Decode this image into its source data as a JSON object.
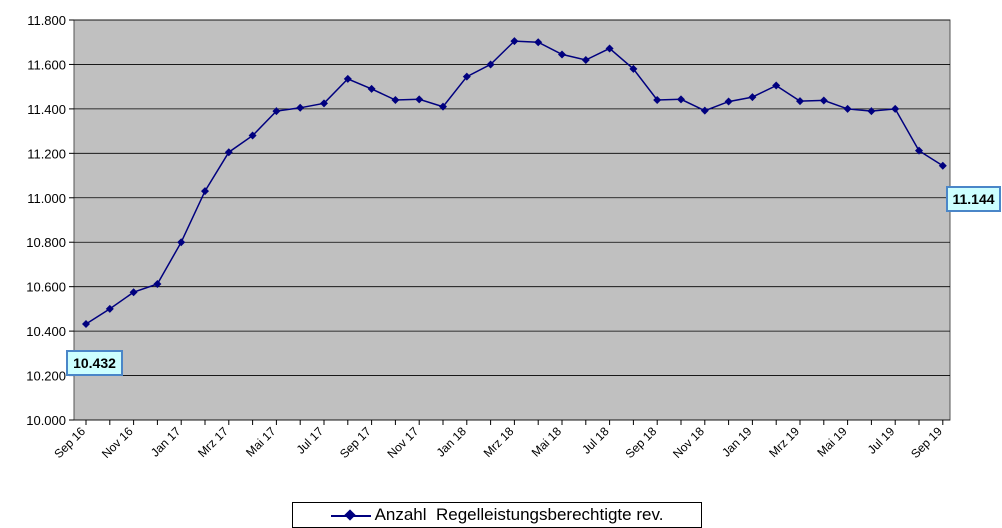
{
  "chart_data": {
    "type": "line",
    "title": "",
    "xlabel": "",
    "ylabel": "",
    "ylim": [
      10000,
      11800
    ],
    "yticks": [
      "10.000",
      "10.200",
      "10.400",
      "10.600",
      "10.800",
      "11.000",
      "11.200",
      "11.400",
      "11.600",
      "11.800"
    ],
    "grid": "horizontal",
    "legend_position": "bottom",
    "colors": {
      "plot_bg": "#c0c0c0",
      "line": "#00007f",
      "label_bg": "#ccffff",
      "label_border": "#4a86c8"
    },
    "x_tick_labels": [
      "Sep 16",
      "Nov 16",
      "Jan 17",
      "Mrz 17",
      "Mai 17",
      "Jul 17",
      "Sep 17",
      "Nov 17",
      "Jan 18",
      "Mrz 18",
      "Mai 18",
      "Jul 18",
      "Sep 18",
      "Nov 18",
      "Jan 19",
      "Mrz 19",
      "Mai 19",
      "Jul 19",
      "Sep 19"
    ],
    "x": [
      "Sep 16",
      "Okt 16",
      "Nov 16",
      "Dez 16",
      "Jan 17",
      "Feb 17",
      "Mrz 17",
      "Apr 17",
      "Mai 17",
      "Jun 17",
      "Jul 17",
      "Aug 17",
      "Sep 17",
      "Okt 17",
      "Nov 17",
      "Dez 17",
      "Jan 18",
      "Feb 18",
      "Mrz 18",
      "Apr 18",
      "Mai 18",
      "Jun 18",
      "Jul 18",
      "Aug 18",
      "Sep 18",
      "Okt 18",
      "Nov 18",
      "Dez 18",
      "Jan 19",
      "Feb 19",
      "Mrz 19",
      "Apr 19",
      "Mai 19",
      "Jun 19",
      "Jul 19",
      "Aug 19",
      "Sep 19"
    ],
    "series": [
      {
        "name": "Anzahl  Regelleistungsberechtigte rev.",
        "values": [
          10432,
          10500,
          10575,
          10612,
          10800,
          11030,
          11205,
          11280,
          11390,
          11405,
          11425,
          11535,
          11490,
          11440,
          11443,
          11410,
          11545,
          11600,
          11705,
          11700,
          11645,
          11620,
          11672,
          11580,
          11440,
          11443,
          11392,
          11433,
          11453,
          11505,
          11435,
          11438,
          11400,
          11390,
          11400,
          11212,
          11144
        ]
      }
    ],
    "annotations": [
      {
        "point_index": 0,
        "text": "10.432"
      },
      {
        "point_index": 36,
        "text": "11.144"
      }
    ]
  }
}
